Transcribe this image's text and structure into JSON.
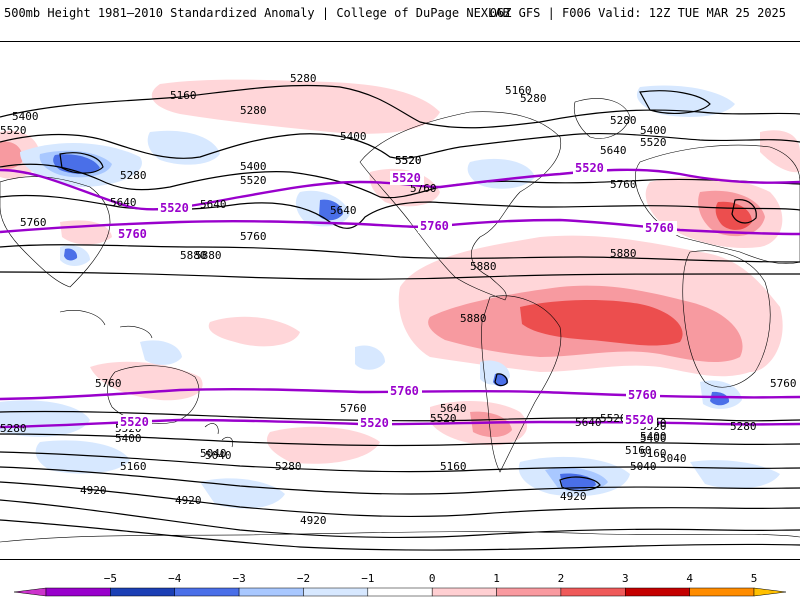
{
  "header": {
    "title_left": "500mb Height 1981–2010 Standardized Anomaly | College of DuPage NEXLAB",
    "title_right": "06Z GFS | F006 Valid: 12Z TUE MAR 25 2025"
  },
  "map": {
    "contour_labels": [
      "5280",
      "5160",
      "5400",
      "5520",
      "5280",
      "5280",
      "5520",
      "5400",
      "5280",
      "5640",
      "5520",
      "5760",
      "5880",
      "5760",
      "5640",
      "5400",
      "5520",
      "5640",
      "5760",
      "5160",
      "5280",
      "5400",
      "5520",
      "5640",
      "5760",
      "5880",
      "5880",
      "5880",
      "5880",
      "5760",
      "5760",
      "5760",
      "5640",
      "5520",
      "5400",
      "5280",
      "5160",
      "5040",
      "4920",
      "4920",
      "4920",
      "5280",
      "5160",
      "5040",
      "4920",
      "5520",
      "5640",
      "5520",
      "5400",
      "5280",
      "5160",
      "5040",
      "5640",
      "5520",
      "5400",
      "5160",
      "5040"
    ],
    "highlight_labels": [
      "5520",
      "5760",
      "5520",
      "5760",
      "5520",
      "5760",
      "5760",
      "5520",
      "5520",
      "5520",
      "5760"
    ],
    "colors": {
      "highlight_contour": "#9900cc",
      "contour": "#000000",
      "coast": "#000000"
    }
  },
  "colorbar": {
    "ticks": [
      "−5",
      "−4",
      "−3",
      "−2",
      "−1",
      "0",
      "1",
      "2",
      "3",
      "4",
      "5"
    ],
    "colors": [
      "#cc33cc",
      "#9900cc",
      "#1b3fb5",
      "#4a6fe8",
      "#a9c8ff",
      "#d7e8ff",
      "#ffffff",
      "#ffcfd2",
      "#f99aa0",
      "#ef5a5a",
      "#c40000",
      "#ff8c00",
      "#ffc000"
    ]
  }
}
